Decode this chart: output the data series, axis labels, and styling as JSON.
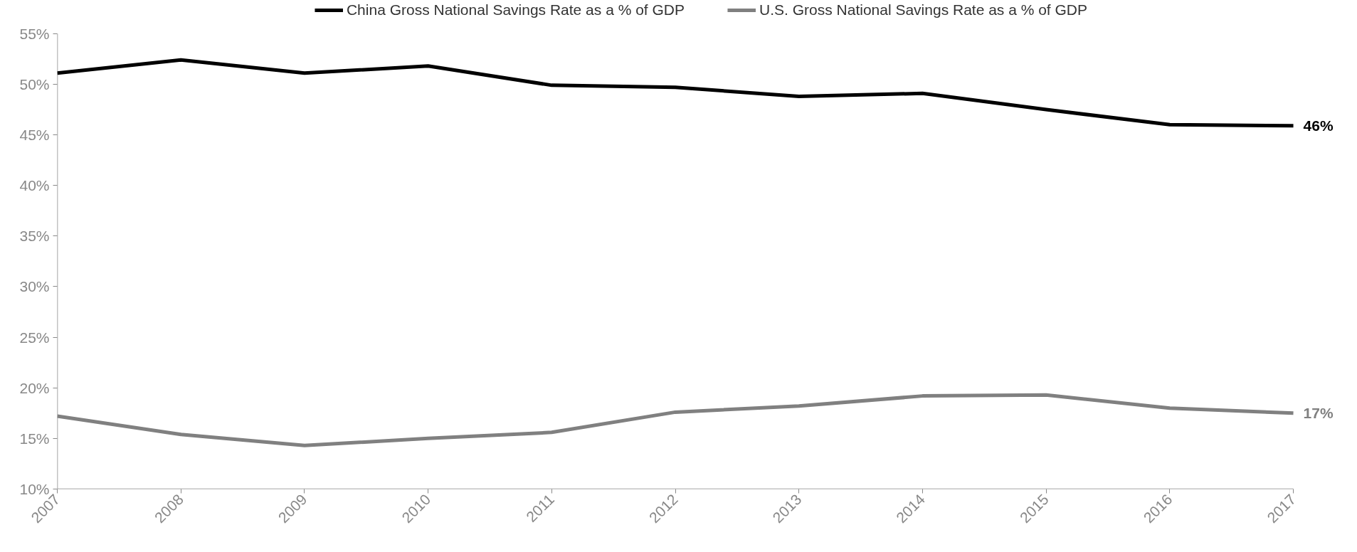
{
  "chart_data": {
    "type": "line",
    "x": [
      2007,
      2008,
      2009,
      2010,
      2011,
      2012,
      2013,
      2014,
      2015,
      2016,
      2017
    ],
    "series": [
      {
        "name": "China Gross National Savings Rate as a % of GDP",
        "color": "#000000",
        "values": [
          51.1,
          52.4,
          51.1,
          51.8,
          49.9,
          49.7,
          48.8,
          49.1,
          47.5,
          46.0,
          45.9
        ],
        "value_labels": [
          null,
          null,
          null,
          null,
          null,
          null,
          null,
          null,
          null,
          null,
          "46%"
        ]
      },
      {
        "name": "U.S. Gross National Savings Rate as a % of GDP",
        "color": "#808080",
        "values": [
          17.2,
          15.4,
          14.3,
          15.0,
          15.6,
          17.6,
          18.2,
          19.2,
          19.3,
          18.0,
          17.5
        ],
        "value_labels": [
          null,
          null,
          null,
          null,
          null,
          null,
          null,
          null,
          null,
          null,
          "17%"
        ]
      }
    ],
    "xlim": [
      2007,
      2017
    ],
    "xticks": [
      2007,
      2008,
      2009,
      2010,
      2011,
      2012,
      2013,
      2014,
      2015,
      2016,
      2017
    ],
    "ylim": [
      10,
      55
    ],
    "yticks": [
      {
        "value": 10,
        "label": "10%"
      },
      {
        "value": 15,
        "label": "15%"
      },
      {
        "value": 20,
        "label": "20%"
      },
      {
        "value": 25,
        "label": "25%"
      },
      {
        "value": 30,
        "label": "30%"
      },
      {
        "value": 35,
        "label": "35%"
      },
      {
        "value": 40,
        "label": "40%"
      },
      {
        "value": 45,
        "label": "45%"
      },
      {
        "value": 50,
        "label": "50%"
      },
      {
        "value": 55,
        "label": "55%"
      }
    ],
    "grid": false,
    "legend": "top",
    "marker": "none",
    "line_style": "solid"
  }
}
